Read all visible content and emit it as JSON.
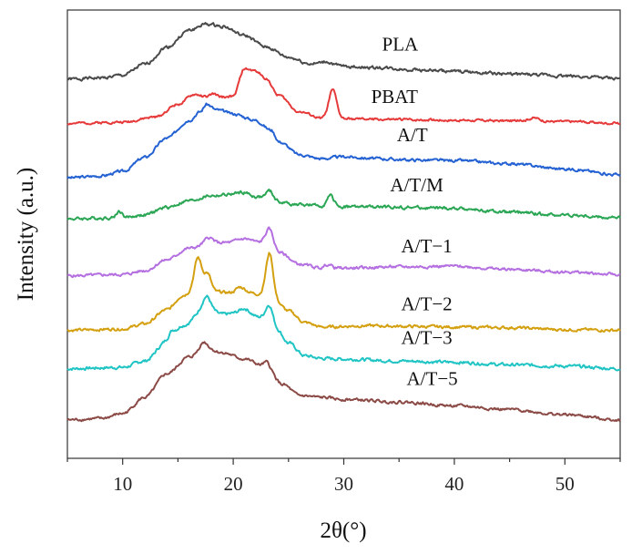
{
  "chart_data": {
    "type": "line",
    "title": "",
    "xlabel": "2θ(°)",
    "ylabel": "Intensity (a.u.)",
    "xlim": [
      5,
      55
    ],
    "xticks": [
      10,
      20,
      30,
      40,
      50
    ],
    "grid": false,
    "series": [
      {
        "name": "PLA",
        "color": "#4a4a4a",
        "offset": 3.9,
        "points": [
          [
            5,
            0.02
          ],
          [
            8,
            0.04
          ],
          [
            10,
            0.08
          ],
          [
            12,
            0.25
          ],
          [
            14,
            0.52
          ],
          [
            16,
            0.78
          ],
          [
            17.5,
            0.88
          ],
          [
            19,
            0.85
          ],
          [
            21,
            0.7
          ],
          [
            23,
            0.52
          ],
          [
            25,
            0.36
          ],
          [
            27,
            0.26
          ],
          [
            30,
            0.22
          ],
          [
            33,
            0.2
          ],
          [
            36,
            0.17
          ],
          [
            40,
            0.14
          ],
          [
            45,
            0.1
          ],
          [
            50,
            0.07
          ],
          [
            55,
            0.03
          ]
        ],
        "peaks": [
          [
            28.5,
            0.05,
            0.5
          ]
        ],
        "noise": 0.02,
        "seed": 1
      },
      {
        "name": "PBAT",
        "color": "#e63a3a",
        "offset": 3.23,
        "points": [
          [
            5,
            0.0
          ],
          [
            10,
            0.02
          ],
          [
            13,
            0.1
          ],
          [
            15,
            0.3
          ],
          [
            16.5,
            0.45
          ],
          [
            18,
            0.4
          ],
          [
            20,
            0.42
          ],
          [
            21,
            0.85
          ],
          [
            22,
            0.82
          ],
          [
            23,
            0.7
          ],
          [
            24,
            0.45
          ],
          [
            26,
            0.18
          ],
          [
            28,
            0.08
          ],
          [
            30,
            0.07
          ],
          [
            35,
            0.06
          ],
          [
            40,
            0.05
          ],
          [
            45,
            0.04
          ],
          [
            50,
            0.03
          ],
          [
            55,
            0.0
          ]
        ],
        "peaks": [
          [
            29,
            0.45,
            0.35
          ],
          [
            47.2,
            0.05,
            0.5
          ],
          [
            18.2,
            0.06,
            0.3
          ]
        ],
        "noise": 0.015,
        "seed": 2
      },
      {
        "name": "A/T",
        "color": "#2462d3",
        "offset": 2.38,
        "points": [
          [
            5,
            0.0
          ],
          [
            8,
            0.03
          ],
          [
            10,
            0.1
          ],
          [
            12,
            0.32
          ],
          [
            14,
            0.62
          ],
          [
            16,
            0.9
          ],
          [
            17,
            1.03
          ],
          [
            17.6,
            1.15
          ],
          [
            18.5,
            1.06
          ],
          [
            20,
            1.0
          ],
          [
            22,
            0.9
          ],
          [
            23.4,
            0.75
          ],
          [
            24.2,
            0.56
          ],
          [
            26,
            0.36
          ],
          [
            28,
            0.3
          ],
          [
            30,
            0.33
          ],
          [
            33,
            0.3
          ],
          [
            36,
            0.28
          ],
          [
            40,
            0.27
          ],
          [
            45,
            0.22
          ],
          [
            50,
            0.14
          ],
          [
            55,
            0.05
          ]
        ],
        "peaks": [],
        "noise": 0.018,
        "seed": 3
      },
      {
        "name": "A/T/M",
        "color": "#2aa654",
        "offset": 1.72,
        "points": [
          [
            5,
            0.02
          ],
          [
            10,
            0.04
          ],
          [
            12,
            0.08
          ],
          [
            14,
            0.2
          ],
          [
            16,
            0.3
          ],
          [
            18,
            0.38
          ],
          [
            20,
            0.4
          ],
          [
            22,
            0.36
          ],
          [
            24,
            0.28
          ],
          [
            26,
            0.24
          ],
          [
            28,
            0.22
          ],
          [
            30,
            0.21
          ],
          [
            35,
            0.2
          ],
          [
            40,
            0.18
          ],
          [
            45,
            0.12
          ],
          [
            50,
            0.08
          ],
          [
            55,
            0.03
          ]
        ],
        "peaks": [
          [
            23.3,
            0.15,
            0.35
          ],
          [
            28.8,
            0.16,
            0.3
          ],
          [
            9.7,
            0.1,
            0.25
          ],
          [
            21,
            0.05,
            0.5
          ]
        ],
        "noise": 0.02,
        "seed": 4
      },
      {
        "name": "A/T−1",
        "color": "#b46fe0",
        "offset": 0.85,
        "points": [
          [
            5,
            0.0
          ],
          [
            10,
            0.02
          ],
          [
            12,
            0.08
          ],
          [
            14,
            0.25
          ],
          [
            16,
            0.43
          ],
          [
            18,
            0.5
          ],
          [
            19.5,
            0.52
          ],
          [
            21,
            0.58
          ],
          [
            22.5,
            0.52
          ],
          [
            24.2,
            0.36
          ],
          [
            26,
            0.18
          ],
          [
            28,
            0.12
          ],
          [
            30,
            0.12
          ],
          [
            35,
            0.14
          ],
          [
            40,
            0.15
          ],
          [
            45,
            0.1
          ],
          [
            50,
            0.06
          ],
          [
            55,
            0.02
          ]
        ],
        "peaks": [
          [
            17.8,
            0.1,
            0.4
          ],
          [
            23.3,
            0.28,
            0.35
          ],
          [
            28.6,
            0.06,
            0.3
          ]
        ],
        "noise": 0.018,
        "seed": 5
      },
      {
        "name": "A/T−2",
        "color": "#d4a010",
        "offset": 0.0,
        "points": [
          [
            5,
            0.0
          ],
          [
            10,
            0.02
          ],
          [
            12,
            0.1
          ],
          [
            14,
            0.32
          ],
          [
            15.5,
            0.55
          ],
          [
            17,
            0.72
          ],
          [
            18.5,
            0.6
          ],
          [
            20,
            0.58
          ],
          [
            21,
            0.6
          ],
          [
            22.5,
            0.56
          ],
          [
            24,
            0.42
          ],
          [
            25,
            0.3
          ],
          [
            26.5,
            0.12
          ],
          [
            28,
            0.05
          ],
          [
            32,
            0.07
          ],
          [
            36,
            0.06
          ],
          [
            40,
            0.05
          ],
          [
            45,
            0.04
          ],
          [
            50,
            0.01
          ],
          [
            55,
            0.0
          ]
        ],
        "peaks": [
          [
            16.8,
            0.42,
            0.32
          ],
          [
            17.7,
            0.22,
            0.3
          ],
          [
            23.3,
            0.72,
            0.33
          ],
          [
            20.6,
            0.08,
            0.4
          ]
        ],
        "noise": 0.018,
        "seed": 6
      },
      {
        "name": "A/T−3",
        "color": "#20c4c4",
        "offset": -0.6,
        "points": [
          [
            5,
            0.0
          ],
          [
            10,
            0.02
          ],
          [
            12,
            0.12
          ],
          [
            14,
            0.42
          ],
          [
            15.5,
            0.68
          ],
          [
            17.5,
            0.95
          ],
          [
            19,
            0.85
          ],
          [
            21,
            0.88
          ],
          [
            22.5,
            0.8
          ],
          [
            24,
            0.6
          ],
          [
            25,
            0.4
          ],
          [
            26.5,
            0.2
          ],
          [
            28,
            0.16
          ],
          [
            30,
            0.15
          ],
          [
            35,
            0.12
          ],
          [
            40,
            0.1
          ],
          [
            45,
            0.06
          ],
          [
            50,
            0.04
          ],
          [
            55,
            0.0
          ]
        ],
        "peaks": [
          [
            14.4,
            0.12,
            0.3
          ],
          [
            17.6,
            0.18,
            0.35
          ],
          [
            23.3,
            0.3,
            0.33
          ],
          [
            21,
            0.06,
            0.4
          ]
        ],
        "noise": 0.02,
        "seed": 7
      },
      {
        "name": "A/T−5",
        "color": "#8b4a45",
        "offset": -1.4,
        "points": [
          [
            5,
            0.0
          ],
          [
            8,
            0.02
          ],
          [
            10,
            0.1
          ],
          [
            12,
            0.35
          ],
          [
            14,
            0.72
          ],
          [
            16,
            0.98
          ],
          [
            17.5,
            1.12
          ],
          [
            19,
            1.05
          ],
          [
            21,
            0.95
          ],
          [
            23,
            0.82
          ],
          [
            24.5,
            0.55
          ],
          [
            26,
            0.38
          ],
          [
            28,
            0.35
          ],
          [
            30,
            0.32
          ],
          [
            35,
            0.28
          ],
          [
            40,
            0.22
          ],
          [
            45,
            0.16
          ],
          [
            50,
            0.08
          ],
          [
            55,
            0.0
          ]
        ],
        "peaks": [
          [
            17.3,
            0.1,
            0.35
          ],
          [
            23,
            0.08,
            0.3
          ]
        ],
        "noise": 0.018,
        "seed": 8
      }
    ],
    "label_x": [
      29.5,
      29,
      30.6,
      31,
      31.9,
      31.9,
      31.9,
      32.4
    ]
  }
}
